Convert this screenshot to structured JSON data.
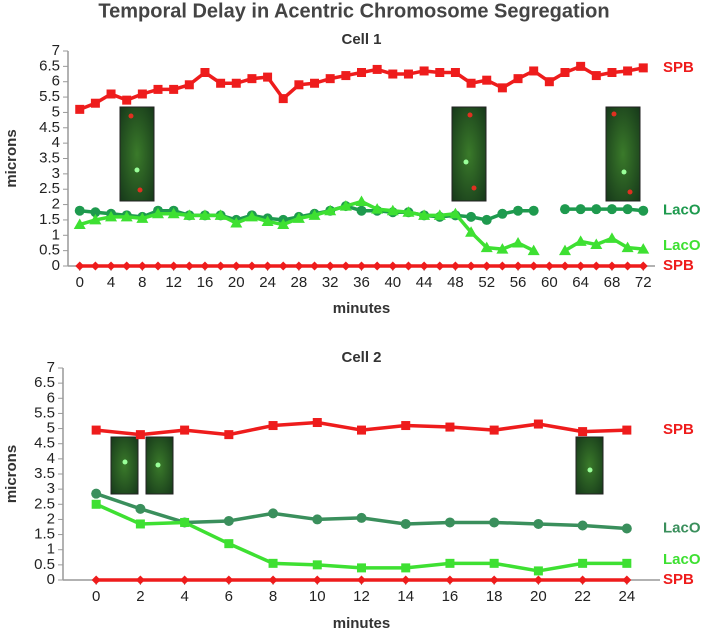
{
  "title": "Temporal Delay in Acentric Chromosome Segregation",
  "chart_data": [
    {
      "type": "line",
      "title": "Cell 1",
      "xlabel": "minutes",
      "ylabel": "microns",
      "x": [
        0,
        2,
        4,
        6,
        8,
        10,
        12,
        14,
        16,
        18,
        20,
        22,
        24,
        26,
        28,
        30,
        32,
        34,
        36,
        38,
        40,
        42,
        44,
        46,
        48,
        50,
        52,
        54,
        56,
        58,
        60,
        62,
        64,
        66,
        68,
        70,
        72
      ],
      "xlim": [
        -1.5,
        73.5
      ],
      "xticks": [
        0,
        4,
        8,
        12,
        16,
        20,
        24,
        28,
        32,
        36,
        40,
        44,
        48,
        52,
        56,
        60,
        64,
        68,
        72
      ],
      "ylim": [
        0,
        7
      ],
      "yticks": [
        0,
        0.5,
        1,
        1.5,
        2,
        2.5,
        3,
        3.5,
        4,
        4.5,
        5,
        5.5,
        6,
        6.5,
        7
      ],
      "grid": false,
      "series": [
        {
          "name": "SPB",
          "color": "#ee1c1c",
          "marker": "square",
          "values": [
            5.1,
            5.3,
            5.6,
            5.4,
            5.6,
            5.75,
            5.75,
            5.9,
            6.3,
            5.95,
            5.95,
            6.1,
            6.15,
            5.45,
            5.9,
            5.95,
            6.1,
            6.2,
            6.3,
            6.4,
            6.25,
            6.25,
            6.35,
            6.3,
            6.3,
            5.95,
            6.05,
            5.8,
            6.1,
            6.35,
            6.0,
            6.3,
            6.5,
            6.2,
            6.3,
            6.35,
            6.45
          ]
        },
        {
          "name": "LacO",
          "color": "#1e9a4e",
          "marker": "circle",
          "values": [
            1.8,
            1.75,
            1.7,
            1.65,
            1.6,
            1.8,
            1.8,
            1.65,
            1.65,
            1.65,
            1.5,
            1.65,
            1.55,
            1.5,
            1.6,
            1.7,
            1.8,
            1.95,
            1.8,
            1.8,
            1.75,
            1.75,
            1.65,
            1.6,
            1.65,
            1.6,
            1.5,
            1.7,
            1.8,
            1.8,
            null,
            1.85,
            1.85,
            1.85,
            1.85,
            1.85,
            1.8
          ]
        },
        {
          "name": "LacO",
          "color": "#3ee032",
          "marker": "triangle",
          "values": [
            1.35,
            1.5,
            1.6,
            1.6,
            1.55,
            1.7,
            1.7,
            1.65,
            1.65,
            1.65,
            1.4,
            1.6,
            1.45,
            1.35,
            1.55,
            1.65,
            1.8,
            1.95,
            2.1,
            1.85,
            1.8,
            1.75,
            1.65,
            1.65,
            1.7,
            1.1,
            0.6,
            0.55,
            0.75,
            0.5,
            null,
            0.5,
            0.8,
            0.7,
            0.9,
            0.6,
            0.55
          ]
        },
        {
          "name": "SPB",
          "color": "#ee1c1c",
          "marker": "diamond",
          "values": [
            0,
            0,
            0,
            0,
            0,
            0,
            0,
            0,
            0,
            0,
            0,
            0,
            0,
            0,
            0,
            0,
            0,
            0,
            0,
            0,
            0,
            0,
            0,
            0,
            0,
            0,
            0,
            0,
            0,
            0,
            0,
            0,
            0,
            0,
            0,
            0,
            0
          ]
        }
      ]
    },
    {
      "type": "line",
      "title": "Cell 2",
      "xlabel": "minutes",
      "ylabel": "microns",
      "x": [
        0,
        2,
        4,
        6,
        8,
        10,
        12,
        14,
        16,
        18,
        20,
        22,
        24
      ],
      "xlim": [
        -1.5,
        25.5
      ],
      "xticks": [
        0,
        2,
        4,
        6,
        8,
        10,
        12,
        14,
        16,
        18,
        20,
        22,
        24
      ],
      "ylim": [
        0,
        7
      ],
      "yticks": [
        0,
        0.5,
        1,
        1.5,
        2,
        2.5,
        3,
        3.5,
        4,
        4.5,
        5,
        5.5,
        6,
        6.5,
        7
      ],
      "grid": false,
      "series": [
        {
          "name": "SPB",
          "color": "#ee1c1c",
          "marker": "square",
          "values": [
            4.95,
            4.8,
            4.95,
            4.8,
            5.1,
            5.2,
            4.95,
            5.1,
            5.05,
            4.95,
            5.15,
            4.9,
            4.95
          ]
        },
        {
          "name": "LacO",
          "color": "#3a8f5c",
          "marker": "circle",
          "values": [
            2.85,
            2.35,
            1.9,
            1.95,
            2.2,
            2.0,
            2.05,
            1.85,
            1.9,
            1.9,
            1.85,
            1.8,
            1.7
          ]
        },
        {
          "name": "LacO",
          "color": "#3ee032",
          "marker": "square",
          "values": [
            2.5,
            1.85,
            1.9,
            1.2,
            0.55,
            0.5,
            0.4,
            0.4,
            0.55,
            0.55,
            0.3,
            0.55,
            0.55
          ]
        },
        {
          "name": "SPB",
          "color": "#ee1c1c",
          "marker": "diamond",
          "values": [
            0,
            0,
            0,
            0,
            0,
            0,
            0,
            0,
            0,
            0,
            0,
            0,
            0
          ]
        }
      ]
    }
  ]
}
